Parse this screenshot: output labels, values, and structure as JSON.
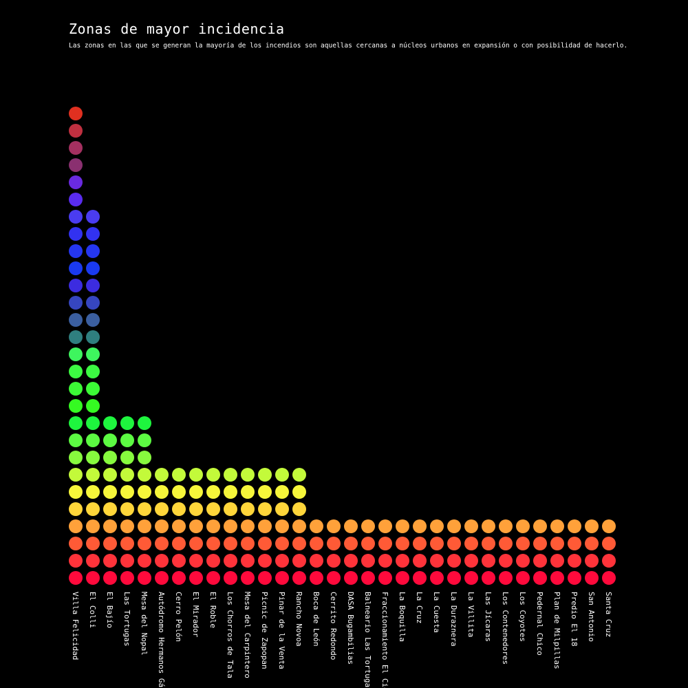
{
  "chart_data": {
    "type": "dot-column",
    "title": "Zonas de mayor incidencia",
    "subtitle": "Las zonas en las que se generan la mayoría de los incendios son aquellas cercanas a núcleos urbanos en expansión o con posibilidad de hacerlo.",
    "categories": [
      "Villa Felicidad",
      "El Colli",
      "El Bajío",
      "Las Tortugas",
      "Mesa del Nopal",
      "Autódromo Hermanos Gálvez",
      "Cerro Pelón",
      "El Mirador",
      "El Roble",
      "Los Chorros de Tala",
      "Mesa del Carpintero",
      "Picnic de Zapopan",
      "Pinar de la Venta",
      "Rancho Novoa",
      "Boca de León",
      "Cerrito Redondo",
      "DASA Bugambilias",
      "Balneario Las Tortugas",
      "Fraccionamiento El Cielo",
      "La Boquilla",
      "La Cruz",
      "La Cuesta",
      "La Duraznera",
      "La Villita",
      "Las Jícaras",
      "Los Contenedores",
      "Los Coyotes",
      "Pedernal Chico",
      "Plan de Milpillas",
      "Predio El 18",
      "San Antonio",
      "Santa Cruz"
    ],
    "values": [
      28,
      22,
      10,
      10,
      10,
      7,
      7,
      7,
      7,
      7,
      7,
      7,
      7,
      7,
      4,
      4,
      4,
      4,
      4,
      4,
      4,
      4,
      4,
      4,
      4,
      4,
      4,
      4,
      4,
      4,
      4,
      4
    ],
    "dot_colors_bottom_to_top": [
      "#ff0a3c",
      "#ff333a",
      "#ff5a36",
      "#ffa13a",
      "#ffd63a",
      "#f6f63a",
      "#c3fa3a",
      "#87fa3e",
      "#5cfa42",
      "#1ef53e",
      "#35fa22",
      "#3cfa36",
      "#3cfa42",
      "#3ef55e",
      "#2f7f7f",
      "#3b5fa0",
      "#3646c0",
      "#3c2ce0",
      "#1a3af0",
      "#2536f0",
      "#3232f0",
      "#4a3cf0",
      "#5a2cf0",
      "#6a2ae0",
      "#8a3070",
      "#a43060",
      "#c03040",
      "#e03020"
    ]
  }
}
